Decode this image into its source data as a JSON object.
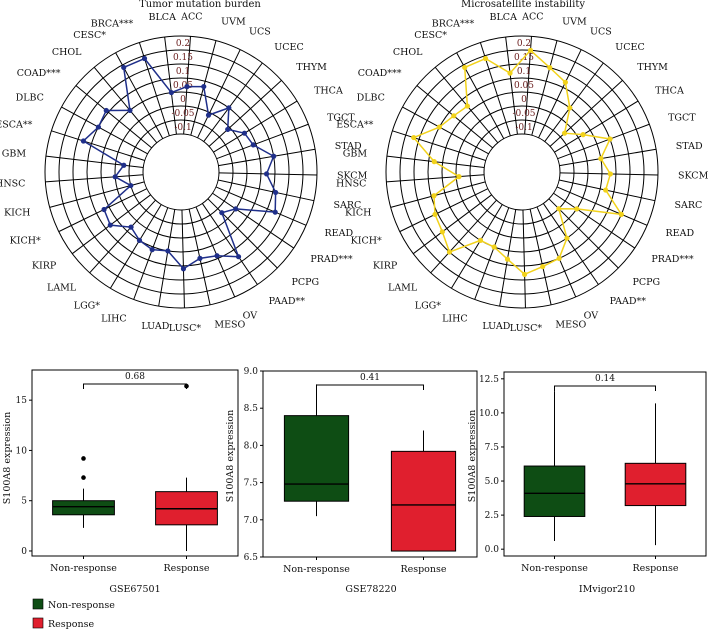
{
  "chart_data": [
    {
      "type": "radar",
      "title": "Tumor mutation burden",
      "color": "#1f2f8a",
      "radial_ticks": [
        "0.2",
        "0.15",
        "0.1",
        "0.05",
        "0",
        "-0.05",
        "-0.1"
      ],
      "rlim": [
        -0.15,
        0.2
      ],
      "categories": [
        "ACC",
        "UVM",
        "UCS",
        "UCEC",
        "THYM",
        "THCA",
        "TGCT",
        "STAD",
        "SKCM",
        "SARC",
        "READ",
        "PRAD***",
        "PCPG",
        "PAAD**",
        "OV",
        "MESO",
        "LUSC*",
        "LUAD",
        "LIHC",
        "LGG*",
        "LAML",
        "KIRP",
        "KICH*",
        "KICH",
        "HNSC",
        "GBM",
        "ESCA**",
        "DLBC",
        "COAD***",
        "CHOL",
        "CESC*",
        "BRCA***",
        "BLCA"
      ],
      "values": [
        0.02,
        0.03,
        -0.06,
        0.0,
        -0.06,
        -0.02,
        -0.01,
        0.05,
        0.02,
        0.06,
        0.08,
        -0.05,
        -0.08,
        0.08,
        0.04,
        0.03,
        0.06,
        0.0,
        0.01,
        0.0,
        -0.02,
        0.03,
        0.02,
        -0.1,
        -0.05,
        -0.08,
        0.08,
        0.05,
        0.06,
        0.0,
        0.14,
        0.14,
        0.0
      ]
    },
    {
      "type": "radar",
      "title": "Microsatellite instability",
      "color": "#f2d21b",
      "radial_ticks": [
        "0.2",
        "0.15",
        "0.1",
        "0.05",
        "0",
        "-0.05",
        "-0.1"
      ],
      "rlim": [
        -0.15,
        0.2
      ],
      "categories": [
        "ACC",
        "UVM",
        "UCS",
        "UCEC",
        "THYM",
        "THCA",
        "TGCT",
        "STAD",
        "SKCM",
        "SARC",
        "READ",
        "PRAD***",
        "PCPG",
        "PAAD**",
        "OV",
        "MESO",
        "LUSC*",
        "LUAD",
        "LIHC",
        "LGG*",
        "LAML",
        "KIRP",
        "KICH*",
        "KICH",
        "HNSC",
        "GBM",
        "ESCA**",
        "DLBC",
        "COAD***",
        "CHOL",
        "CESC*",
        "BRCA***",
        "BLCA"
      ],
      "values": [
        0.15,
        0.1,
        0.07,
        0.0,
        -0.08,
        -0.03,
        0.05,
        0.0,
        0.03,
        0.02,
        0.1,
        -0.05,
        -0.1,
        0.0,
        0.05,
        0.06,
        0.08,
        0.03,
        0.0,
        0.0,
        0.1,
        0.07,
        0.06,
        0.04,
        -0.06,
        0.03,
        0.12,
        0.05,
        0.03,
        0.02,
        0.14,
        0.14,
        0.07
      ]
    },
    {
      "type": "box",
      "title": "GSE67501",
      "ylabel": "S100A8 expression",
      "categories": [
        "Non-response",
        "Response"
      ],
      "yticks": [
        "0",
        "5",
        "10",
        "15"
      ],
      "ylim": [
        -0.5,
        18
      ],
      "p_value": "0.68",
      "boxes": [
        {
          "group": "Non-response",
          "min": 2.3,
          "q1": 3.6,
          "median": 4.4,
          "q3": 5.0,
          "max": 6.2,
          "outliers": [
            7.3,
            9.2
          ]
        },
        {
          "group": "Response",
          "min": 0.0,
          "q1": 2.6,
          "median": 4.2,
          "q3": 5.9,
          "max": 7.3,
          "outliers": [
            16.4
          ]
        }
      ]
    },
    {
      "type": "box",
      "title": "GSE78220",
      "ylabel": "S100A8 expression",
      "categories": [
        "Non-response",
        "Response"
      ],
      "yticks": [
        "6.5",
        "7.0",
        "7.5",
        "8.0",
        "8.5",
        "9.0"
      ],
      "ylim": [
        6.5,
        9.0
      ],
      "p_value": "0.41",
      "boxes": [
        {
          "group": "Non-response",
          "min": 7.05,
          "q1": 7.25,
          "median": 7.48,
          "q3": 8.4,
          "max": 8.82,
          "outliers": []
        },
        {
          "group": "Response",
          "min": 6.58,
          "q1": 6.58,
          "median": 7.2,
          "q3": 7.92,
          "max": 8.2,
          "outliers": []
        }
      ]
    },
    {
      "type": "box",
      "title": "IMvigor210",
      "ylabel": "S100A8 expression",
      "categories": [
        "Non-response",
        "Response"
      ],
      "yticks": [
        "0.0",
        "2.5",
        "5.0",
        "7.5",
        "10.0",
        "12.5"
      ],
      "ylim": [
        -0.5,
        13.0
      ],
      "p_value": "0.14",
      "boxes": [
        {
          "group": "Non-response",
          "min": 0.6,
          "q1": 2.4,
          "median": 4.1,
          "q3": 6.1,
          "max": 11.6,
          "outliers": []
        },
        {
          "group": "Response",
          "min": 0.3,
          "q1": 3.2,
          "median": 4.8,
          "q3": 6.3,
          "max": 10.7,
          "outliers": []
        }
      ]
    }
  ],
  "legend": {
    "items": [
      {
        "label": "Non-response",
        "color": "#0e4d14"
      },
      {
        "label": "Response",
        "color": "#e01f2e"
      }
    ]
  }
}
